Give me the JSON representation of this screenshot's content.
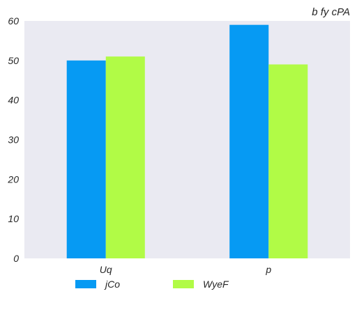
{
  "chart_data": {
    "type": "bar",
    "title": "b  fy cPA",
    "xlabel": "",
    "ylabel": "",
    "categories": [
      "Uq",
      "p"
    ],
    "series": [
      {
        "name": "jCo",
        "values": [
          50,
          59
        ],
        "color": "#069af3"
      },
      {
        "name": "WyeF",
        "values": [
          51,
          49
        ],
        "color": "#b1fb46"
      }
    ],
    "ylim": [
      0,
      60
    ],
    "yticks": [
      0,
      10,
      20,
      30,
      40,
      50,
      60
    ],
    "grid": false,
    "background": "#eaeaf2",
    "legend_position": "bottom-center"
  }
}
